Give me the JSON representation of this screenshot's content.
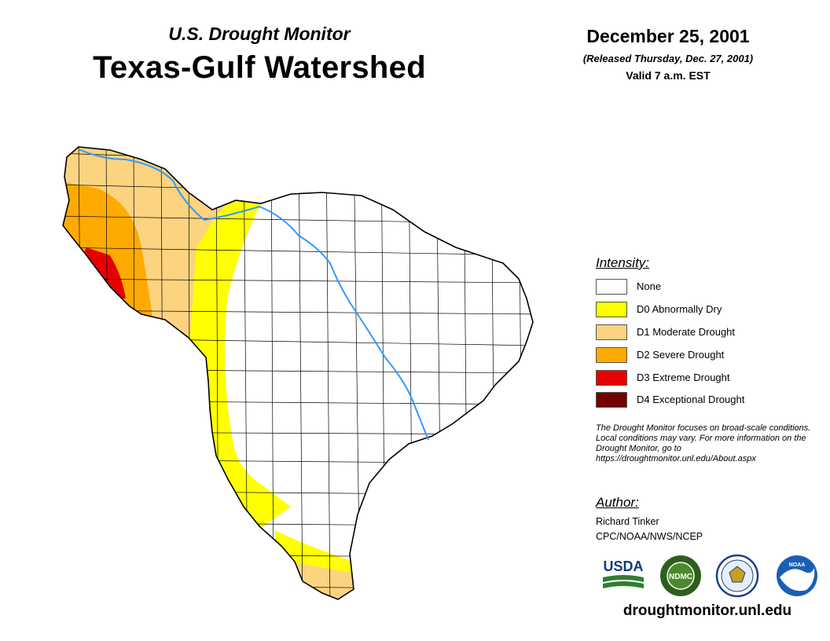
{
  "header": {
    "subtitle": "U.S. Drought Monitor",
    "title": "Texas-Gulf Watershed",
    "date": "December 25, 2001",
    "released": "(Released Thursday, Dec. 27, 2001)",
    "valid": "Valid 7 a.m. EST"
  },
  "legend": {
    "heading": "Intensity:",
    "items": [
      {
        "label": "None",
        "color": "#ffffff"
      },
      {
        "label": "D0 Abnormally Dry",
        "color": "#ffff00"
      },
      {
        "label": "D1 Moderate Drought",
        "color": "#fcd37f"
      },
      {
        "label": "D2 Severe Drought",
        "color": "#ffaa00"
      },
      {
        "label": "D3 Extreme Drought",
        "color": "#e60000"
      },
      {
        "label": "D4 Exceptional Drought",
        "color": "#730000"
      }
    ]
  },
  "disclaimer": "The Drought Monitor focuses on broad-scale conditions. Local conditions may vary. For more information on the Drought Monitor, go to https://droughtmonitor.unl.edu/About.aspx",
  "author": {
    "heading": "Author:",
    "name": "Richard Tinker",
    "org": "CPC/NOAA/NWS/NCEP"
  },
  "logos": {
    "usda": "USDA",
    "ndmc": "NDMC",
    "noaa": "NOAA"
  },
  "footer": {
    "website": "droughtmonitor.unl.edu"
  },
  "colors": {
    "river": "#3399ff",
    "county_line": "#000000"
  }
}
